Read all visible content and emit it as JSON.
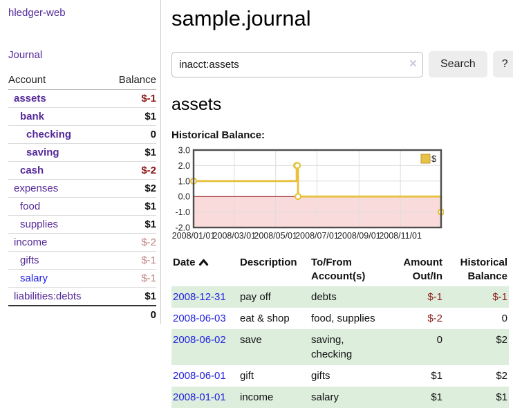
{
  "colors": {
    "link_purple": "#552a99",
    "link_blue": "#2222dd",
    "negative_strong": "#8b1414",
    "negative_soft": "#c08080",
    "row_green": "#ddeedd"
  },
  "sidebar": {
    "brand": "hledger-web",
    "nav_journal": "Journal",
    "accounts": {
      "col_account": "Account",
      "col_balance": "Balance",
      "rows": [
        {
          "name": "assets",
          "balance": "$-1"
        },
        {
          "name": "bank",
          "balance": "$1"
        },
        {
          "name": "checking",
          "balance": "0"
        },
        {
          "name": "saving",
          "balance": "$1"
        },
        {
          "name": "cash",
          "balance": "$-2"
        },
        {
          "name": "expenses",
          "balance": "$2"
        },
        {
          "name": "food",
          "balance": "$1"
        },
        {
          "name": "supplies",
          "balance": "$1"
        },
        {
          "name": "income",
          "balance": "$-2"
        },
        {
          "name": "gifts",
          "balance": "$-1"
        },
        {
          "name": "salary",
          "balance": "$-1"
        },
        {
          "name": "liabilities:debts",
          "balance": "$1"
        }
      ],
      "total": "0"
    }
  },
  "main": {
    "title": "sample.journal",
    "search": {
      "value": "inacct:assets",
      "clear_glyph": "×",
      "search_label": "Search",
      "help_label": "?"
    },
    "account_title": "assets",
    "chart_heading": "Historical Balance:"
  },
  "chart_data": {
    "type": "line",
    "step": true,
    "title": "Historical Balance:",
    "legend": {
      "position": "top-right",
      "label": "$"
    },
    "x_range": [
      "2008-01-01",
      "2008-12-31"
    ],
    "ylim": [
      -2,
      3
    ],
    "y_ticks": [
      3.0,
      2.0,
      1.0,
      0.0,
      -1.0,
      -2.0
    ],
    "x_ticks": [
      "2008/01/01",
      "2008/03/01",
      "2008/05/01",
      "2008/07/01",
      "2008/09/01",
      "2008/11/01"
    ],
    "grid": true,
    "series": [
      {
        "name": "$",
        "points": [
          [
            "2008-01-01",
            1
          ],
          [
            "2008-06-01",
            2
          ],
          [
            "2008-06-02",
            2
          ],
          [
            "2008-06-03",
            0
          ],
          [
            "2008-12-31",
            -1
          ]
        ]
      }
    ],
    "colors": {
      "line": "#e7c13d",
      "marker_fill": "#ffffff",
      "negative_region": "#fadbdb",
      "zero_line": "#8b0000",
      "grid": "#dddddd",
      "frame": "#4d4d4d",
      "legend_fill": "#e9c245",
      "legend_border": "#b99a33",
      "tick_label": "#222222"
    }
  },
  "register": {
    "headers": {
      "date": "Date",
      "description": "Description",
      "accounts": "To/From Account(s)",
      "amount": "Amount Out/In",
      "balance": "Historical Balance"
    },
    "sort_icon": "chevron-up",
    "rows": [
      {
        "date": "2008-12-31",
        "description": "pay off",
        "accounts": "debts",
        "amount": "$-1",
        "balance": "$-1"
      },
      {
        "date": "2008-06-03",
        "description": "eat & shop",
        "accounts": "food, supplies",
        "amount": "$-2",
        "balance": "0"
      },
      {
        "date": "2008-06-02",
        "description": "save",
        "accounts": "saving,\nchecking",
        "amount": "0",
        "balance": "$2"
      },
      {
        "date": "2008-06-01",
        "description": "gift",
        "accounts": "gifts",
        "amount": "$1",
        "balance": "$2"
      },
      {
        "date": "2008-01-01",
        "description": "income",
        "accounts": "salary",
        "amount": "$1",
        "balance": "$1"
      }
    ]
  }
}
